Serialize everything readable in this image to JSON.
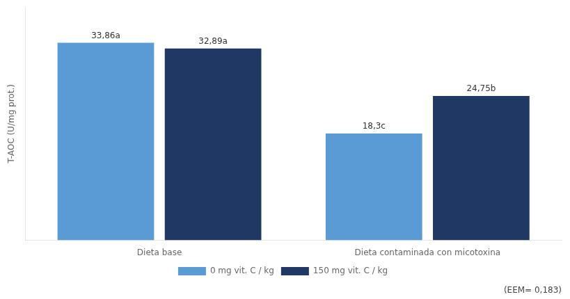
{
  "chart_data": {
    "type": "bar",
    "categories": [
      "Dieta base",
      "Dieta contaminada con micotoxina"
    ],
    "series": [
      {
        "name": "0 mg vit. C / kg",
        "color": "#5B9BD5",
        "values": [
          33.86,
          18.3
        ],
        "value_labels": [
          "33,86a",
          "18,3c"
        ]
      },
      {
        "name": "150 mg vit. C / kg",
        "color": "#1F3864",
        "values": [
          32.89,
          24.75
        ],
        "value_labels": [
          "32,89a",
          "24,75b"
        ]
      }
    ],
    "ylabel": "T-AOC (U/mg prot.)",
    "ylim": [
      0,
      40
    ],
    "grid": false,
    "legend": "bottom",
    "data_labels": true,
    "tick_labels": "x",
    "annotations": [
      "(EEM= 0,183)"
    ]
  }
}
